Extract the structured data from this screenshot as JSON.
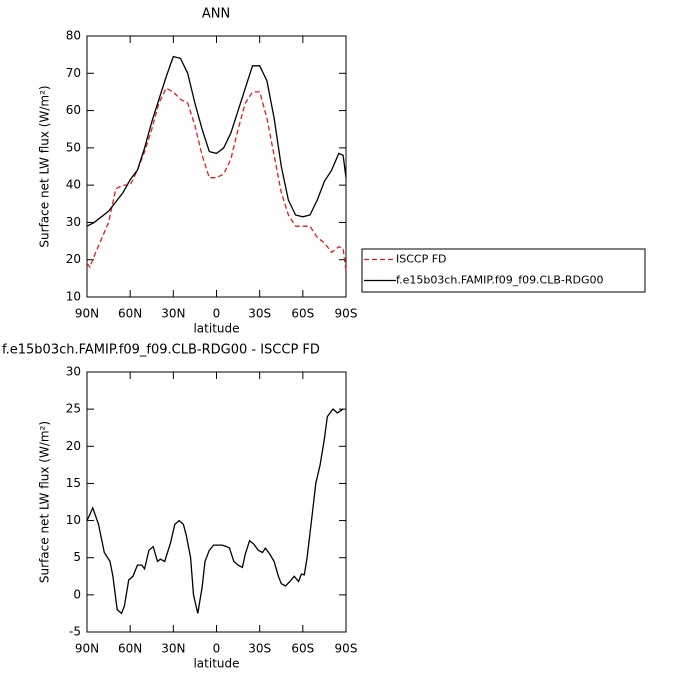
{
  "chart_data": [
    {
      "type": "line",
      "title": "ANN",
      "x_label": "latitude",
      "y_label": "Surface net LW flux (W/m²)",
      "xlim": [
        90,
        -90
      ],
      "xticks": [
        {
          "value": 90,
          "label": "90N"
        },
        {
          "value": 60,
          "label": "60N"
        },
        {
          "value": 30,
          "label": "30N"
        },
        0,
        {
          "value": -30,
          "label": "30S"
        },
        {
          "value": -60,
          "label": "60S"
        },
        {
          "value": -90,
          "label": "90S"
        }
      ],
      "ylim": [
        10,
        80
      ],
      "yticks": [
        10,
        20,
        30,
        40,
        50,
        60,
        70,
        80
      ],
      "legend": "right",
      "series": [
        {
          "name": "ISCCP FD",
          "color": "#e41a1c",
          "dash": true,
          "x": [
            90,
            88,
            85,
            80,
            75,
            70,
            65,
            60,
            55,
            50,
            45,
            40,
            35,
            30,
            25,
            20,
            15,
            10,
            5,
            0,
            -5,
            -10,
            -15,
            -20,
            -25,
            -30,
            -35,
            -40,
            -45,
            -50,
            -55,
            -60,
            -65,
            -70,
            -75,
            -80,
            -85,
            -88,
            -90
          ],
          "values": [
            19,
            18,
            21,
            25.5,
            30,
            39,
            40,
            40,
            44,
            49,
            55,
            62,
            66,
            65,
            63,
            62,
            56,
            48,
            42,
            42,
            43,
            47,
            55,
            62,
            65,
            65,
            58,
            48,
            38,
            32,
            29,
            29,
            29,
            26,
            24.5,
            22,
            23.5,
            23,
            17
          ]
        },
        {
          "name": "f.e15b03ch.FAMIP.f09_f09.CLB-RDG00",
          "color": "#000000",
          "dash": false,
          "x": [
            90,
            85,
            80,
            75,
            70,
            65,
            60,
            55,
            50,
            45,
            40,
            35,
            30,
            25,
            20,
            15,
            10,
            5,
            0,
            -5,
            -10,
            -15,
            -20,
            -25,
            -30,
            -35,
            -40,
            -45,
            -50,
            -55,
            -60,
            -65,
            -70,
            -75,
            -80,
            -85,
            -88,
            -90
          ],
          "values": [
            29,
            30,
            31.5,
            33,
            35.5,
            38,
            41.5,
            44,
            50,
            57,
            63,
            69,
            74.5,
            74,
            70,
            62,
            55,
            49,
            48.5,
            50,
            54,
            60,
            66,
            72,
            72,
            68,
            58,
            45,
            36,
            32,
            31.5,
            32,
            36,
            41,
            44,
            48.5,
            48,
            42
          ]
        }
      ]
    },
    {
      "type": "line",
      "title": "f.e15b03ch.FAMIP.f09_f09.CLB-RDG00 - ISCCP FD",
      "x_label": "latitude",
      "y_label": "Surface net LW flux (W/m²)",
      "xlim": [
        90,
        -90
      ],
      "xticks": [
        {
          "value": 90,
          "label": "90N"
        },
        {
          "value": 60,
          "label": "60N"
        },
        {
          "value": 30,
          "label": "30N"
        },
        0,
        {
          "value": -30,
          "label": "30S"
        },
        {
          "value": -60,
          "label": "60S"
        },
        {
          "value": -90,
          "label": "90S"
        }
      ],
      "ylim": [
        -5,
        30
      ],
      "yticks": [
        -5,
        0,
        5,
        10,
        15,
        20,
        25,
        30
      ],
      "series": [
        {
          "color": "#000000",
          "dash": false,
          "x": [
            90,
            86,
            82,
            78,
            74,
            72,
            69,
            66,
            64,
            61,
            58,
            55,
            52,
            50,
            47,
            44,
            41,
            39,
            36,
            32,
            29,
            26,
            23,
            21,
            18,
            16,
            13,
            10,
            8,
            5,
            2,
            -4,
            -7,
            -9,
            -12,
            -15,
            -18,
            -20,
            -23,
            -26,
            -29,
            -32,
            -34,
            -37,
            -40,
            -43,
            -45,
            -48,
            -51,
            -54,
            -57,
            -59,
            -61,
            -63,
            -66,
            -69,
            -72,
            -75,
            -77,
            -81,
            -84,
            -88
          ],
          "values": [
            10,
            11.7,
            9.5,
            5.7,
            4.5,
            2.5,
            -2,
            -2.5,
            -1.5,
            2,
            2.5,
            4,
            4,
            3.5,
            6,
            6.5,
            4.5,
            4.8,
            4.5,
            7,
            9.5,
            10,
            9.5,
            8,
            5,
            0,
            -2.5,
            1,
            4.5,
            6,
            6.7,
            6.7,
            6.5,
            6.3,
            4.5,
            4,
            3.7,
            5.5,
            7.3,
            6.8,
            6,
            5.7,
            6.3,
            5.5,
            4.5,
            2.5,
            1.5,
            1.2,
            1.8,
            2.5,
            1.8,
            2.8,
            2.7,
            5,
            10,
            15,
            17.5,
            21,
            24,
            25,
            24.5,
            25
          ]
        }
      ]
    }
  ]
}
